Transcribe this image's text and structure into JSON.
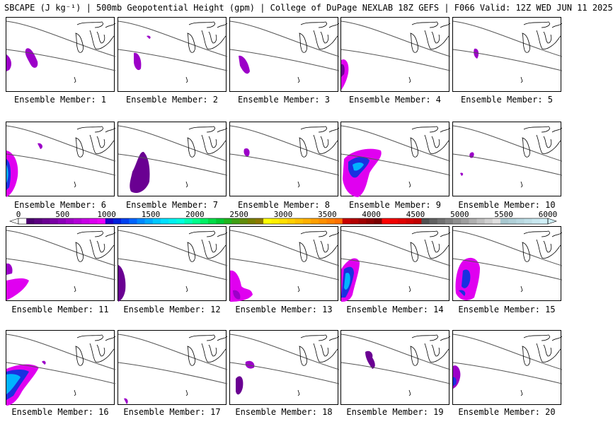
{
  "title": "SBCAPE (J kg⁻¹) | 500mb Geopotential Height (gpm) | College of DuPage NEXLAB 18Z GEFS | F066 Valid: 12Z WED JUN 11 2025",
  "label_prefix": "Ensemble Member:",
  "members": [
    {
      "id": "1"
    },
    {
      "id": "2"
    },
    {
      "id": "3"
    },
    {
      "id": "4"
    },
    {
      "id": "5"
    },
    {
      "id": "6"
    },
    {
      "id": "7"
    },
    {
      "id": "8"
    },
    {
      "id": "9"
    },
    {
      "id": "10"
    },
    {
      "id": "11"
    },
    {
      "id": "12"
    },
    {
      "id": "13"
    },
    {
      "id": "14"
    },
    {
      "id": "15"
    },
    {
      "id": "16"
    },
    {
      "id": "17"
    },
    {
      "id": "18"
    },
    {
      "id": "19"
    },
    {
      "id": "20"
    }
  ],
  "colorbar": {
    "ticks": [
      "0",
      "500",
      "1000",
      "1500",
      "2000",
      "2500",
      "3000",
      "3500",
      "4000",
      "4500",
      "5000",
      "5500",
      "6000"
    ],
    "colors": [
      "#ffffff",
      "#4b006e",
      "#5a0080",
      "#6a0092",
      "#7a00a4",
      "#8b00b8",
      "#a000c8",
      "#b400d8",
      "#c800e6",
      "#dc00f0",
      "#ee00fa",
      "#1a00c8",
      "#0020dc",
      "#0040f0",
      "#0064ff",
      "#0088ff",
      "#00a8ff",
      "#00c8ff",
      "#00e0ff",
      "#00f0f0",
      "#00ffe0",
      "#00ffb4",
      "#00ff8c",
      "#00f064",
      "#00dc46",
      "#00c832",
      "#20b41e",
      "#40a014",
      "#608c0a",
      "#788000",
      "#8c7800",
      "#ffff00",
      "#fff000",
      "#ffe000",
      "#ffd000",
      "#ffc000",
      "#ffb000",
      "#ffa000",
      "#ff9000",
      "#ff8000",
      "#ff7000",
      "#c80000",
      "#b40000",
      "#a00000",
      "#8c0000",
      "#780000",
      "#ff0000",
      "#f00000",
      "#e00000",
      "#d00000",
      "#c00000",
      "#505050",
      "#606060",
      "#707070",
      "#808080",
      "#909090",
      "#a0a0a0",
      "#b0b0b0",
      "#c0c0c0",
      "#d0d0d0",
      "#e0e0e0",
      "#a8c8d0",
      "#b0d0d8",
      "#b8d8e0",
      "#c0e0e8",
      "#c8e8f0",
      "#d0f0f8"
    ]
  }
}
